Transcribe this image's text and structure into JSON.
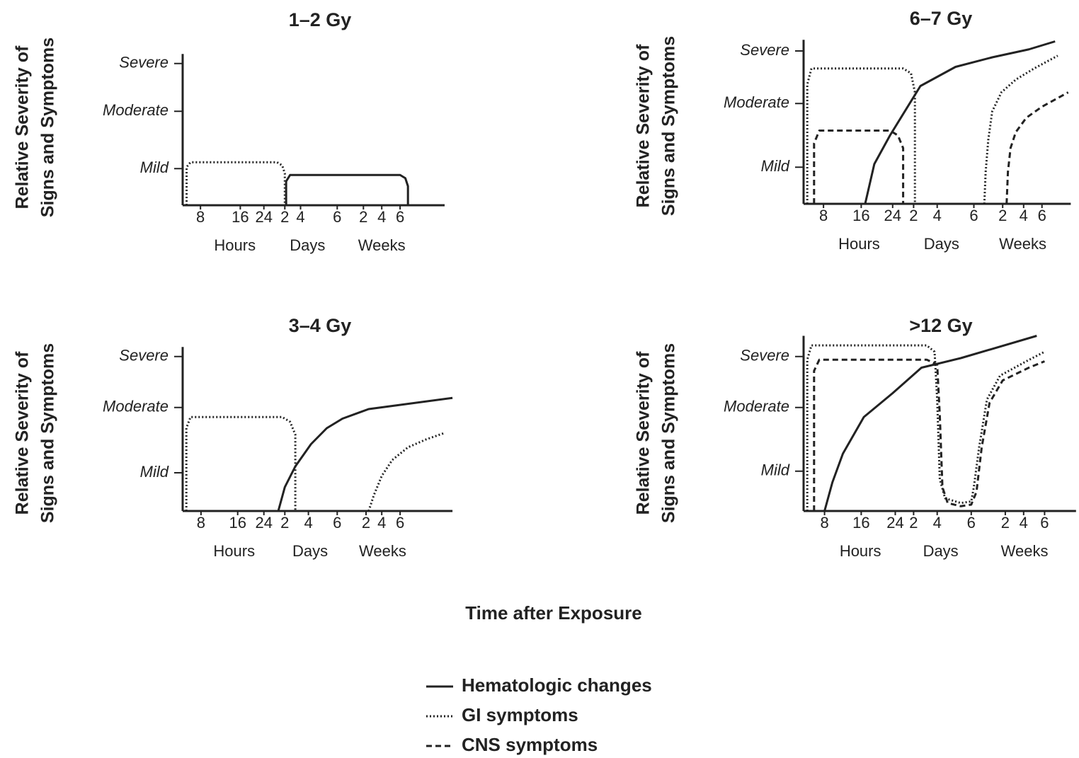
{
  "chart_data": [
    {
      "type": "line",
      "title": "1–2 Gy",
      "ylabel": [
        "Relative Severity of",
        "Signs and Symptoms"
      ],
      "xlim": [
        0,
        100
      ],
      "ylim": [
        0,
        95
      ],
      "xticks": [
        {
          "value": 6.8,
          "label": "8"
        },
        {
          "value": 22,
          "label": "16"
        },
        {
          "value": 31,
          "label": "24"
        },
        {
          "value": 39,
          "label": "2"
        },
        {
          "value": 45,
          "label": "4"
        },
        {
          "value": 59,
          "label": "6"
        },
        {
          "value": 69,
          "label": "2"
        },
        {
          "value": 76,
          "label": "4"
        },
        {
          "value": 83,
          "label": "6"
        }
      ],
      "x_groups": [
        "Hours",
        "Days",
        "Weeks"
      ],
      "yticks": [
        {
          "value": 23,
          "label": "Mild"
        },
        {
          "value": 59,
          "label": "Moderate"
        },
        {
          "value": 89,
          "label": "Severe"
        }
      ],
      "series": [
        {
          "name": "GI symptoms",
          "color": "#222222",
          "dash": "dotted",
          "x": [
            1.5,
            1.5,
            3,
            36,
            38,
            39,
            39
          ],
          "values": [
            0,
            24,
            27,
            27,
            25,
            20,
            0
          ]
        },
        {
          "name": "Hematologic changes",
          "color": "#222222",
          "dash": "solid",
          "x": [
            39.5,
            39.5,
            41,
            83,
            85,
            86,
            86
          ],
          "values": [
            0,
            15,
            19,
            19,
            17,
            12,
            0
          ]
        }
      ]
    },
    {
      "type": "line",
      "title": "3–4 Gy",
      "ylabel": [
        "Relative Severity of",
        "Signs and Symptoms"
      ],
      "xlim": [
        0,
        103
      ],
      "ylim": [
        0,
        103
      ],
      "xticks": [
        {
          "value": 7,
          "label": "8"
        },
        {
          "value": 21,
          "label": "16"
        },
        {
          "value": 31,
          "label": "24"
        },
        {
          "value": 39,
          "label": "2"
        },
        {
          "value": 48,
          "label": "4"
        },
        {
          "value": 59,
          "label": "6"
        },
        {
          "value": 70,
          "label": "2"
        },
        {
          "value": 76,
          "label": "4"
        },
        {
          "value": 83,
          "label": "6"
        }
      ],
      "x_groups": [
        "Hours",
        "Days",
        "Weeks"
      ],
      "yticks": [
        {
          "value": 24,
          "label": "Mild"
        },
        {
          "value": 65,
          "label": "Moderate"
        },
        {
          "value": 97,
          "label": "Severe"
        }
      ],
      "series": [
        {
          "name": "GI symptoms",
          "color": "#222222",
          "dash": "dotted",
          "x": [
            1.4,
            1.4,
            3,
            38,
            41,
            43,
            43
          ],
          "values": [
            0,
            52,
            59,
            59,
            56,
            48,
            0
          ]
        },
        {
          "name": "GI symptoms",
          "color": "#222222",
          "dash": "dotted",
          "x": [
            71,
            73,
            76,
            80,
            86,
            93,
            100
          ],
          "values": [
            0,
            10,
            22,
            32,
            40,
            45,
            49
          ]
        },
        {
          "name": "Hematologic changes",
          "color": "#222222",
          "dash": "solid",
          "x": [
            36.5,
            39,
            43,
            49,
            55,
            61,
            71,
            103
          ],
          "values": [
            0,
            15,
            28,
            42,
            52,
            58,
            64,
            71
          ]
        }
      ]
    },
    {
      "type": "line",
      "title": "6–7 Gy",
      "ylabel": [
        "Relative Severity of",
        "Signs and Symptoms"
      ],
      "xlim": [
        0,
        102
      ],
      "ylim": [
        0,
        103
      ],
      "xticks": [
        {
          "value": 7.6,
          "label": "8"
        },
        {
          "value": 22,
          "label": "16"
        },
        {
          "value": 34,
          "label": "24"
        },
        {
          "value": 42,
          "label": "2"
        },
        {
          "value": 51,
          "label": "4"
        },
        {
          "value": 65,
          "label": "6"
        },
        {
          "value": 76,
          "label": "2"
        },
        {
          "value": 84,
          "label": "4"
        },
        {
          "value": 91,
          "label": "6"
        }
      ],
      "x_groups": [
        "Hours",
        "Days",
        "Weeks"
      ],
      "yticks": [
        {
          "value": 23,
          "label": "Mild"
        },
        {
          "value": 63,
          "label": "Moderate"
        },
        {
          "value": 96,
          "label": "Severe"
        }
      ],
      "series": [
        {
          "name": "Hematologic changes",
          "color": "#222222",
          "dash": "solid",
          "x": [
            23.5,
            27,
            33,
            44.6,
            58,
            72,
            86,
            96
          ],
          "values": [
            0,
            25,
            43,
            74,
            86,
            92,
            97,
            102
          ]
        },
        {
          "name": "GI symptoms",
          "color": "#222222",
          "dash": "dotted",
          "x": [
            1.4,
            1.4,
            3,
            38,
            41,
            42.5,
            42.5
          ],
          "values": [
            0,
            75,
            85,
            85,
            82,
            70,
            0
          ]
        },
        {
          "name": "CNS symptoms",
          "color": "#222222",
          "dash": "dashed",
          "x": [
            4,
            4,
            6,
            33,
            36,
            38,
            38
          ],
          "values": [
            0,
            38,
            46,
            46,
            43,
            35,
            0
          ]
        },
        {
          "name": "GI symptoms",
          "color": "#222222",
          "dash": "dotted",
          "x": [
            69,
            69.5,
            70.5,
            72,
            75.5,
            81,
            88,
            97
          ],
          "values": [
            0,
            20,
            40,
            58,
            70,
            78,
            85,
            93
          ]
        },
        {
          "name": "CNS symptoms",
          "color": "#222222",
          "dash": "dashed",
          "x": [
            77.5,
            78,
            79,
            81,
            85,
            91,
            101
          ],
          "values": [
            0,
            20,
            35,
            45,
            54,
            61,
            70
          ]
        }
      ]
    },
    {
      "type": "line",
      "title": ">12 Gy",
      "ylabel": [
        "Relative Severity of",
        "Signs and Symptoms"
      ],
      "xlim": [
        0,
        104
      ],
      "ylim": [
        0,
        110
      ],
      "xticks": [
        {
          "value": 8,
          "label": "8"
        },
        {
          "value": 22,
          "label": "16"
        },
        {
          "value": 35,
          "label": "24"
        },
        {
          "value": 42,
          "label": "2"
        },
        {
          "value": 51,
          "label": "4"
        },
        {
          "value": 64,
          "label": "6"
        },
        {
          "value": 77,
          "label": "2"
        },
        {
          "value": 84,
          "label": "4"
        },
        {
          "value": 92,
          "label": "6"
        }
      ],
      "x_groups": [
        "Hours",
        "Days",
        "Weeks"
      ],
      "yticks": [
        {
          "value": 25,
          "label": "Mild"
        },
        {
          "value": 65,
          "label": "Moderate"
        },
        {
          "value": 97,
          "label": "Severe"
        }
      ],
      "series": [
        {
          "name": "GI symptoms",
          "color": "#222222",
          "dash": "dotted",
          "x": [
            1.4,
            1.4,
            3,
            47,
            50,
            51,
            52,
            54,
            60,
            64,
            65,
            67,
            70,
            75,
            85,
            92
          ],
          "values": [
            0,
            95,
            104,
            104,
            100,
            70,
            20,
            8,
            5,
            6,
            15,
            40,
            70,
            85,
            94,
            100
          ]
        },
        {
          "name": "CNS symptoms",
          "color": "#222222",
          "dash": "dashed",
          "x": [
            4,
            4,
            6,
            47,
            51,
            52,
            53,
            55,
            60,
            64,
            66,
            68,
            71,
            76,
            86,
            92
          ],
          "values": [
            0,
            88,
            95,
            95,
            92,
            60,
            15,
            5,
            3,
            4,
            12,
            40,
            68,
            82,
            90,
            94
          ]
        },
        {
          "name": "Hematologic changes",
          "color": "#222222",
          "dash": "solid",
          "x": [
            8,
            11,
            15,
            23,
            34,
            45,
            60,
            89
          ],
          "values": [
            0,
            18,
            36,
            59,
            74,
            90,
            96,
            110
          ]
        }
      ]
    }
  ],
  "xlabel": "Time after Exposure"
}
